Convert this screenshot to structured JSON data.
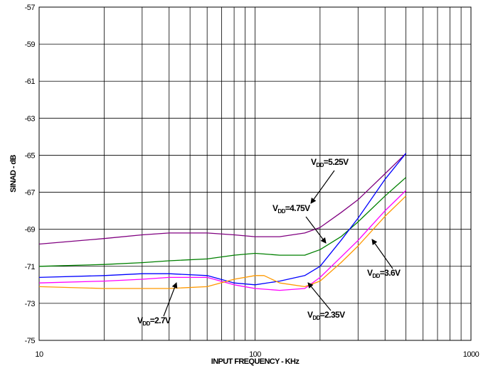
{
  "chart_data": {
    "type": "line",
    "xlabel": "INPUT FREQUENCY - KHz",
    "ylabel": "SINAD - dB",
    "xscale": "log",
    "xlim": [
      10,
      1000
    ],
    "ylim": [
      -75,
      -57
    ],
    "grid": true,
    "x_tick_labels": [
      "10",
      "100",
      "1000"
    ],
    "y_ticks": [
      -57,
      -59,
      -61,
      -63,
      -65,
      -67,
      -69,
      -71,
      -73,
      -75
    ],
    "series": [
      {
        "name": "V_DD=5.25V",
        "color": "#800080",
        "x": [
          10,
          20,
          30,
          40,
          60,
          80,
          100,
          130,
          170,
          200,
          250,
          300,
          400,
          500
        ],
        "y": [
          -69.8,
          -69.5,
          -69.3,
          -69.2,
          -69.2,
          -69.3,
          -69.4,
          -69.4,
          -69.2,
          -68.9,
          -68.1,
          -67.4,
          -66.0,
          -64.9
        ]
      },
      {
        "name": "V_DD=4.75V",
        "color": "#008000",
        "x": [
          10,
          20,
          30,
          40,
          60,
          80,
          100,
          130,
          170,
          200,
          250,
          300,
          400,
          500
        ],
        "y": [
          -71.0,
          -70.9,
          -70.8,
          -70.7,
          -70.6,
          -70.4,
          -70.3,
          -70.4,
          -70.4,
          -70.1,
          -69.4,
          -68.6,
          -67.2,
          -66.2
        ]
      },
      {
        "name": "V_DD=3.6V",
        "color": "#ff00ff",
        "x": [
          10,
          20,
          30,
          40,
          60,
          80,
          100,
          130,
          170,
          200,
          250,
          300,
          400,
          500
        ],
        "y": [
          -71.9,
          -71.8,
          -71.7,
          -71.6,
          -71.6,
          -72.0,
          -72.2,
          -72.3,
          -72.2,
          -71.6,
          -70.5,
          -69.6,
          -68.0,
          -66.9
        ]
      },
      {
        "name": "V_DD=2.35V",
        "color": "#0000ff",
        "x": [
          10,
          20,
          30,
          40,
          60,
          80,
          100,
          130,
          170,
          200,
          250,
          300,
          400,
          500
        ],
        "y": [
          -71.6,
          -71.5,
          -71.4,
          -71.4,
          -71.5,
          -71.9,
          -72.0,
          -71.8,
          -71.5,
          -71.0,
          -69.6,
          -68.4,
          -66.3,
          -64.9
        ]
      },
      {
        "name": "V_DD=2.7V",
        "color": "#ff9900",
        "x": [
          10,
          20,
          30,
          40,
          60,
          80,
          100,
          110,
          130,
          170,
          200,
          250,
          300,
          400,
          500
        ],
        "y": [
          -72.1,
          -72.2,
          -72.2,
          -72.2,
          -72.1,
          -71.7,
          -71.5,
          -71.5,
          -71.9,
          -72.1,
          -71.8,
          -70.8,
          -69.9,
          -68.3,
          -67.2
        ]
      }
    ],
    "annotations": [
      {
        "main": "V",
        "sub": "DD",
        "rest": "=5.25V"
      },
      {
        "main": "V",
        "sub": "DD",
        "rest": "=4.75V"
      },
      {
        "main": "V",
        "sub": "DD",
        "rest": "=3.6V"
      },
      {
        "main": "V",
        "sub": "DD",
        "rest": "=2.35V"
      },
      {
        "main": "V",
        "sub": "DD",
        "rest": "=2.7V"
      }
    ]
  }
}
